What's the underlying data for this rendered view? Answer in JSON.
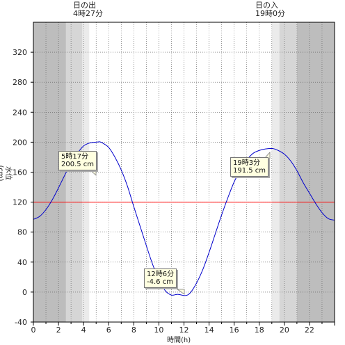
{
  "header": {
    "sunrise_label": "日の出",
    "sunrise_time": "4時27分",
    "sunset_label": "日の入",
    "sunset_time": "19時0分"
  },
  "chart_data": {
    "type": "line",
    "xlabel": "時間(h)",
    "ylabel": "水位(cm)",
    "xlim": [
      0,
      24
    ],
    "ylim": [
      -40,
      360
    ],
    "x_ticks": [
      0,
      2,
      4,
      6,
      8,
      10,
      12,
      14,
      16,
      18,
      20,
      22
    ],
    "y_ticks": [
      -40,
      0,
      40,
      80,
      120,
      160,
      200,
      240,
      280,
      320
    ],
    "reference_line": {
      "value": 120,
      "color": "#ff0000"
    },
    "series": [
      {
        "color": "#0000cc",
        "x": [
          0,
          0.5,
          1,
          1.5,
          2,
          2.5,
          3,
          3.5,
          4,
          4.5,
          5,
          5.28,
          5.5,
          6,
          6.5,
          7,
          7.5,
          8,
          8.5,
          9,
          9.5,
          10,
          10.5,
          11,
          11.5,
          12.1,
          12.5,
          13,
          13.5,
          14,
          14.5,
          15,
          15.5,
          16,
          16.5,
          17,
          17.5,
          18,
          18.5,
          19.05,
          19.5,
          20,
          20.5,
          21,
          21.5,
          22,
          22.5,
          23,
          23.5,
          24
        ],
        "y": [
          97,
          101,
          110,
          123,
          139,
          156,
          172,
          185,
          195,
          199,
          200,
          200.5,
          199,
          193,
          180,
          163,
          141,
          114,
          88,
          62,
          37,
          17,
          2,
          -4,
          -3,
          -4.6,
          -1,
          12,
          30,
          53,
          78,
          103,
          126,
          147,
          163,
          176,
          185,
          189,
          191,
          191.5,
          189,
          184,
          175,
          162,
          146,
          132,
          118,
          106,
          98,
          96
        ]
      }
    ],
    "annotations": [
      {
        "time": "5時17分",
        "value": "200.5 cm"
      },
      {
        "time": "12時6分",
        "value": "-4.6 cm"
      },
      {
        "time": "19時3分",
        "value": "191.5 cm"
      }
    ],
    "night_shading": {
      "dark": [
        [
          0,
          2.6
        ],
        [
          21,
          24
        ]
      ],
      "twilight": [
        [
          2.6,
          3.9
        ],
        [
          19.6,
          21
        ]
      ],
      "light": [
        [
          3.9,
          4.45
        ],
        [
          19,
          19.6
        ]
      ]
    },
    "grid": true
  }
}
